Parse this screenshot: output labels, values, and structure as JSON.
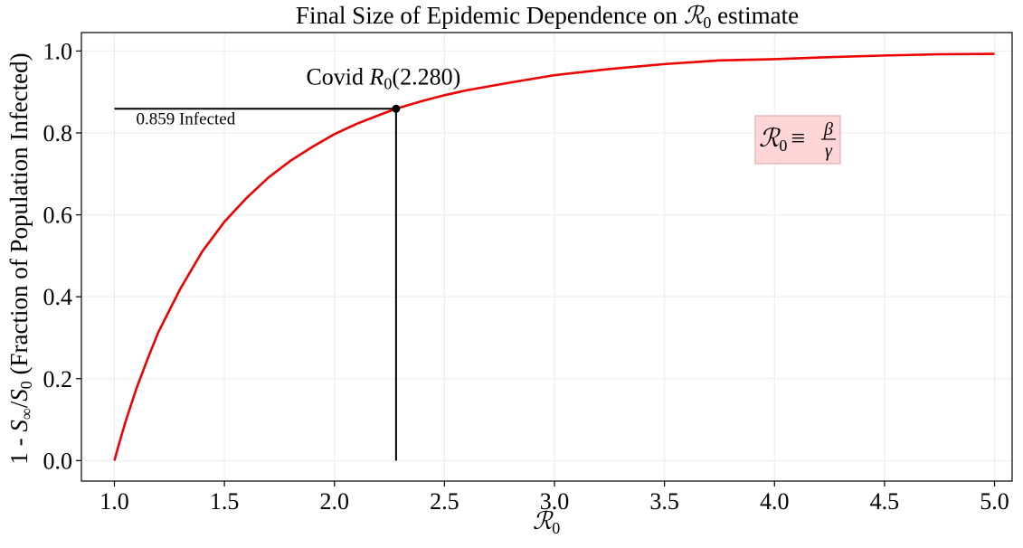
{
  "chart_data": {
    "type": "line",
    "title": {
      "prefix": "Final Size of Epidemic Dependence on ",
      "symbol": "ℛ",
      "symbol_sub": "0",
      "suffix": " estimate"
    },
    "xlabel": {
      "symbol": "ℛ",
      "sub": "0"
    },
    "ylabel": {
      "prefix": "1 - ",
      "s_inf": "S",
      "inf_sub": "∞",
      "slash": "/",
      "s_zero": "S",
      "zero_sub": "0",
      "suffix": " (Fraction of Population Infected)"
    },
    "xlim": [
      0.85,
      5.08
    ],
    "ylim": [
      -0.05,
      1.045
    ],
    "xticks": [
      1.0,
      1.5,
      2.0,
      2.5,
      3.0,
      3.5,
      4.0,
      4.5,
      5.0
    ],
    "xtick_labels": [
      "1.0",
      "1.5",
      "2.0",
      "2.5",
      "3.0",
      "3.5",
      "4.0",
      "4.5",
      "5.0"
    ],
    "yticks": [
      0.0,
      0.2,
      0.4,
      0.6,
      0.8,
      1.0
    ],
    "ytick_labels": [
      "0.0",
      "0.2",
      "0.4",
      "0.6",
      "0.8",
      "1.0"
    ],
    "grid": true,
    "series": [
      {
        "color": "#ee0000",
        "x": [
          1.0,
          1.02,
          1.05,
          1.1,
          1.15,
          1.2,
          1.3,
          1.4,
          1.5,
          1.6,
          1.7,
          1.8,
          1.9,
          2.0,
          2.1,
          2.2,
          2.28,
          2.4,
          2.5,
          2.6,
          2.8,
          3.0,
          3.25,
          3.5,
          3.75,
          4.0,
          4.25,
          4.5,
          4.75,
          5.0
        ],
        "y": [
          0.0,
          0.039,
          0.094,
          0.176,
          0.247,
          0.314,
          0.42,
          0.511,
          0.583,
          0.641,
          0.691,
          0.732,
          0.766,
          0.797,
          0.822,
          0.843,
          0.859,
          0.878,
          0.892,
          0.904,
          0.923,
          0.941,
          0.956,
          0.968,
          0.977,
          0.98,
          0.985,
          0.989,
          0.992,
          0.993
        ]
      }
    ],
    "highlight_point": {
      "x": 2.28,
      "y": 0.859
    },
    "annotations": {
      "covid_prefix": "Covid ",
      "covid_symbol": "R",
      "covid_sub": "0",
      "covid_value": "(2.280)",
      "infected_label": "0.859 Infected",
      "formula": {
        "lhs": "ℛ",
        "lhs_sub": "0",
        "equiv": "≡",
        "numerator": "β",
        "denominator": "γ"
      }
    },
    "colors": {
      "curve": "#ee0000",
      "guide_lines": "#000000",
      "formula_box_fill": "#ffd6d6",
      "formula_box_stroke": "#e0b0b0",
      "grid": "#ebebeb"
    }
  }
}
